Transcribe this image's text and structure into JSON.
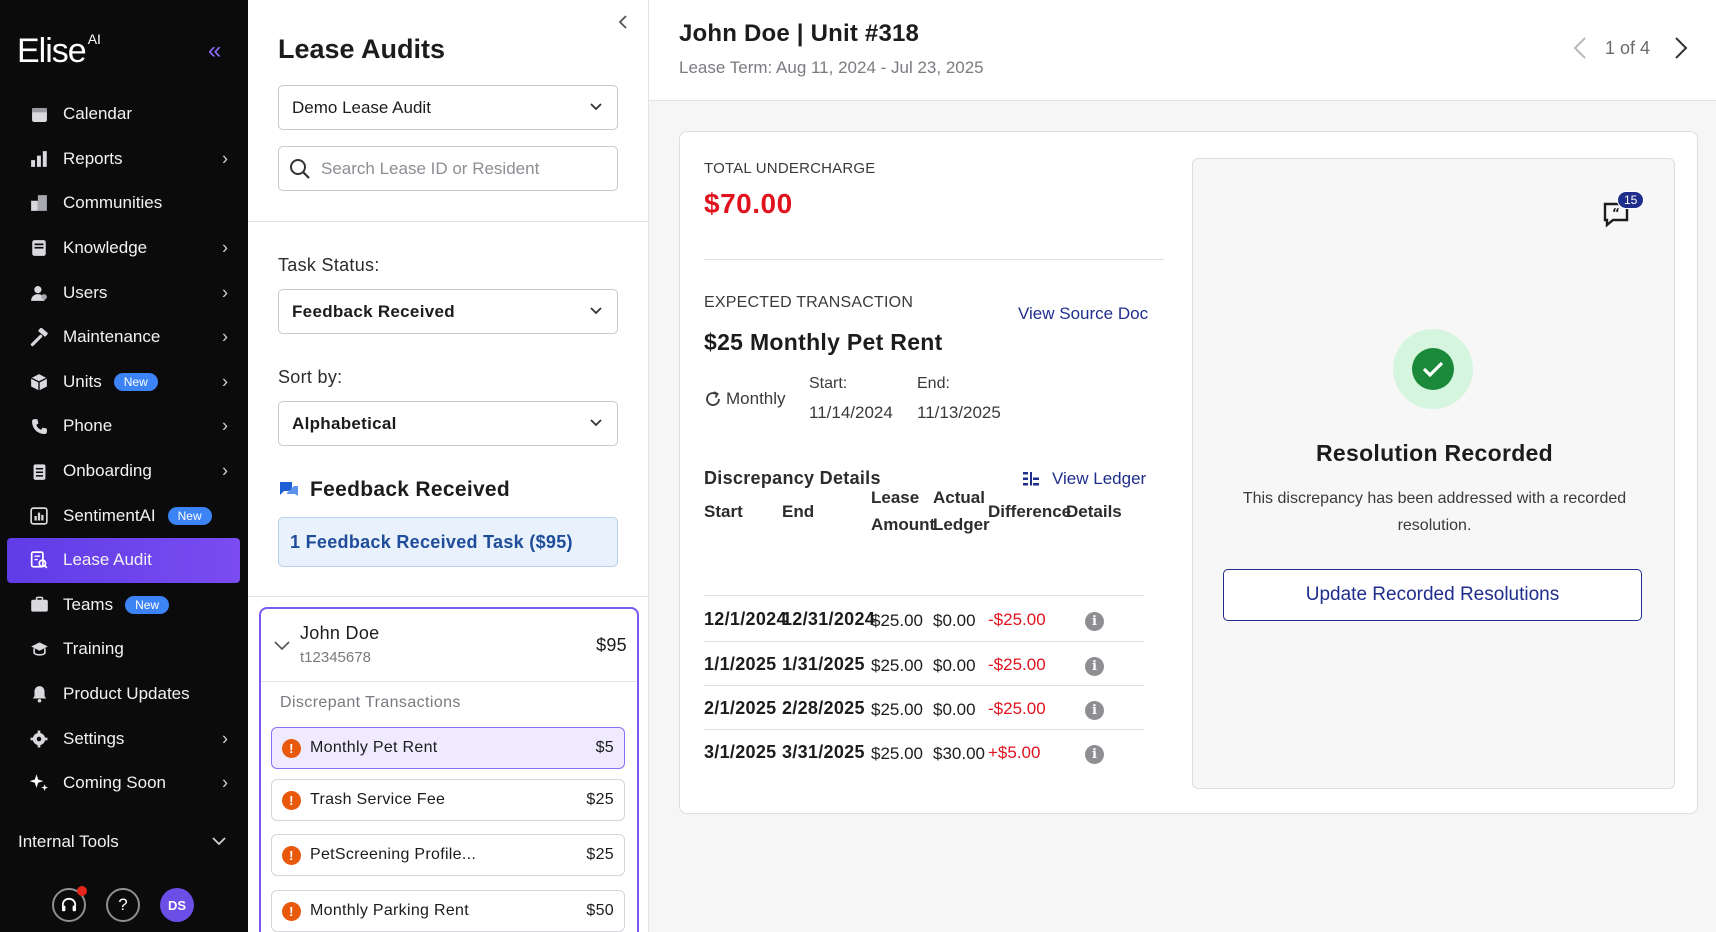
{
  "sidebar": {
    "logo": "Elise",
    "logo_suffix": "AI",
    "items": [
      {
        "label": "Calendar",
        "icon": "calendar-icon",
        "chevron": false,
        "badge": ""
      },
      {
        "label": "Reports",
        "icon": "bar-chart-icon",
        "chevron": true,
        "badge": ""
      },
      {
        "label": "Communities",
        "icon": "building-icon",
        "chevron": false,
        "badge": ""
      },
      {
        "label": "Knowledge",
        "icon": "book-icon",
        "chevron": true,
        "badge": ""
      },
      {
        "label": "Users",
        "icon": "users-icon",
        "chevron": true,
        "badge": ""
      },
      {
        "label": "Maintenance",
        "icon": "hammer-icon",
        "chevron": true,
        "badge": ""
      },
      {
        "label": "Units",
        "icon": "box-icon",
        "chevron": true,
        "badge": "New"
      },
      {
        "label": "Phone",
        "icon": "phone-icon",
        "chevron": true,
        "badge": ""
      },
      {
        "label": "Onboarding",
        "icon": "clipboard-icon",
        "chevron": true,
        "badge": ""
      },
      {
        "label": "SentimentAI",
        "icon": "sentiment-icon",
        "chevron": false,
        "badge": "New"
      },
      {
        "label": "Lease Audit",
        "icon": "lease-audit-icon",
        "chevron": false,
        "badge": "",
        "active": true
      },
      {
        "label": "Teams",
        "icon": "briefcase-icon",
        "chevron": false,
        "badge": "New"
      },
      {
        "label": "Training",
        "icon": "graduation-cap-icon",
        "chevron": false,
        "badge": ""
      },
      {
        "label": "Product Updates",
        "icon": "bell-icon",
        "chevron": false,
        "badge": ""
      },
      {
        "label": "Settings",
        "icon": "gear-icon",
        "chevron": true,
        "badge": ""
      },
      {
        "label": "Coming Soon",
        "icon": "sparkle-icon",
        "chevron": true,
        "badge": ""
      }
    ],
    "internal_tools": "Internal Tools",
    "help_glyph": "?",
    "avatar_initials": "DS"
  },
  "audits": {
    "title": "Lease Audits",
    "audit_select": "Demo Lease Audit",
    "search_placeholder": "Search Lease ID or Resident",
    "task_status_label": "Task Status:",
    "task_status_value": "Feedback Received",
    "sort_label": "Sort by:",
    "sort_value": "Alphabetical",
    "feedback_heading": "Feedback Received",
    "feedback_task": "1 Feedback Received Task ($95)",
    "resident": {
      "name": "John Doe",
      "id": "t12345678",
      "amount": "$95",
      "subheading": "Discrepant Transactions",
      "transactions": [
        {
          "label": "Monthly Pet Rent",
          "amount": "$5"
        },
        {
          "label": "Trash Service Fee",
          "amount": "$25"
        },
        {
          "label": "PetScreening Profile...",
          "amount": "$25"
        },
        {
          "label": "Monthly Parking Rent",
          "amount": "$50"
        }
      ]
    }
  },
  "header": {
    "title": "John Doe | Unit #318",
    "subtitle": "Lease Term: Aug 11, 2024 - Jul 23, 2025",
    "pager": "1 of 4"
  },
  "detail": {
    "total_label": "TOTAL UNDERCHARGE",
    "total_value": "$70.00",
    "expected_label": "EXPECTED TRANSACTION",
    "view_source": "View Source Doc",
    "expected_title": "$25 Monthly Pet Rent",
    "frequency": "Monthly",
    "start_label": "Start:",
    "start_value": "11/14/2024",
    "end_label": "End:",
    "end_value": "11/13/2025",
    "discrepancy_title": "Discrepancy Details",
    "view_ledger": "View Ledger",
    "columns": {
      "start": "Start",
      "end": "End",
      "lease_1": "Lease",
      "lease_2": "Amount",
      "actual_1": "Actual",
      "actual_2": "Ledger",
      "difference": "Difference",
      "details": "Details"
    },
    "rows": [
      {
        "start": "12/1/2024",
        "end": "12/31/2024",
        "lease": "$25.00",
        "actual": "$0.00",
        "diff": "-$25.00"
      },
      {
        "start": "1/1/2025",
        "end": "1/31/2025",
        "lease": "$25.00",
        "actual": "$0.00",
        "diff": "-$25.00"
      },
      {
        "start": "2/1/2025",
        "end": "2/28/2025",
        "lease": "$25.00",
        "actual": "$0.00",
        "diff": "-$25.00"
      },
      {
        "start": "3/1/2025",
        "end": "3/31/2025",
        "lease": "$25.00",
        "actual": "$30.00",
        "diff": "+$5.00"
      }
    ],
    "info_glyph": "i"
  },
  "resolution": {
    "comment_count": "15",
    "title": "Resolution Recorded",
    "text": "This discrepancy has been addressed with a recorded resolution.",
    "button": "Update Recorded Resolutions"
  },
  "colors": {
    "accent": "#6b4ee6",
    "negative": "#e0121d",
    "link": "#1f2e8c",
    "success": "#1a8a3a"
  }
}
